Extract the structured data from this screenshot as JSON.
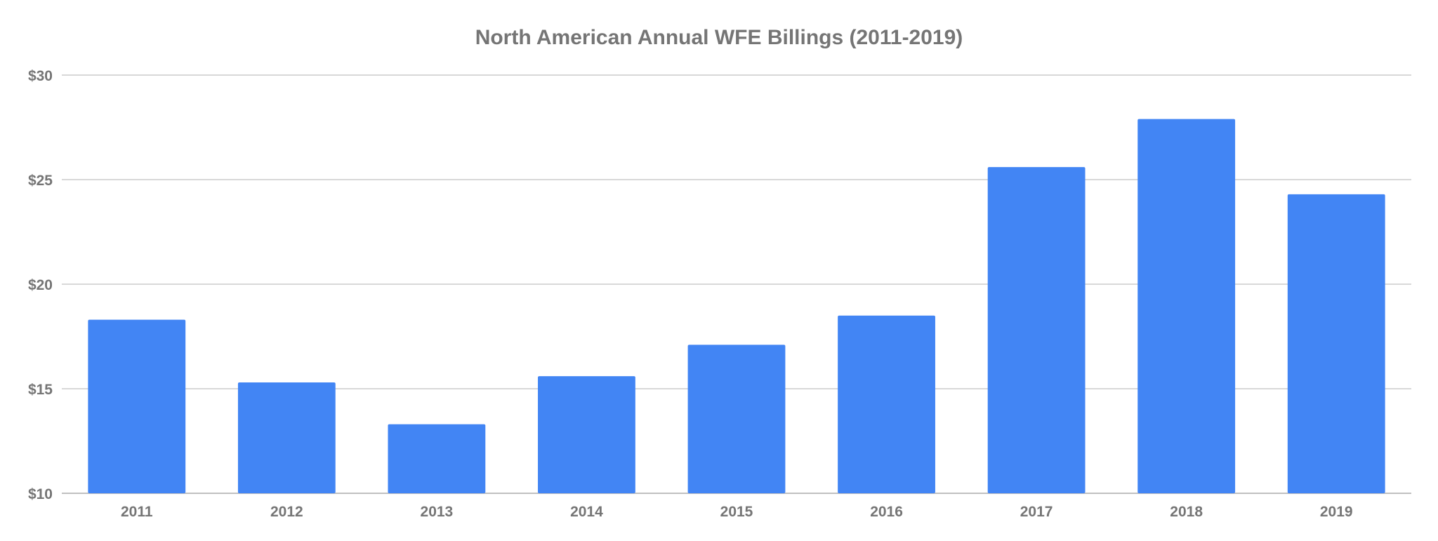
{
  "chart_data": {
    "type": "bar",
    "title": "North American Annual WFE Billings (2011-2019)",
    "xlabel": "",
    "ylabel": "",
    "categories": [
      "2011",
      "2012",
      "2013",
      "2014",
      "2015",
      "2016",
      "2017",
      "2018",
      "2019"
    ],
    "values": [
      18.3,
      15.3,
      13.3,
      15.6,
      17.1,
      18.5,
      25.6,
      27.9,
      24.3
    ],
    "ylim": [
      10,
      30
    ],
    "yticks": [
      10,
      15,
      20,
      25,
      30
    ],
    "ytick_labels": [
      "$10",
      "$15",
      "$20",
      "$25",
      "$30"
    ],
    "grid": true,
    "legend": "none",
    "bar_color": "#4285f4",
    "text_color": "#757575",
    "grid_color": "#cccccc"
  }
}
